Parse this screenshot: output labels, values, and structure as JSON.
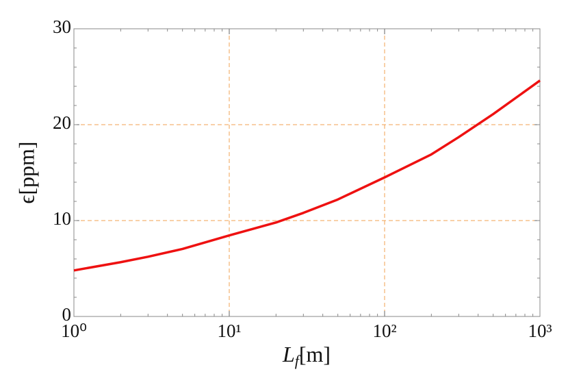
{
  "chart_data": {
    "type": "line",
    "x_label": "Lf[m]",
    "y_label": "ϵ[ppm]",
    "x": [
      1,
      2,
      3,
      5,
      10,
      20,
      30,
      50,
      100,
      200,
      300,
      500,
      1000
    ],
    "series": [
      {
        "name": "ϵ",
        "color": "#ee1111",
        "values": [
          4.8,
          5.66,
          6.23,
          7.04,
          8.45,
          9.8,
          10.8,
          12.2,
          14.5,
          16.9,
          18.7,
          21.1,
          24.6
        ]
      }
    ],
    "xlim": [
      1,
      1000
    ],
    "xscale": "log",
    "xticks": [
      {
        "value": 1,
        "label": "10⁰"
      },
      {
        "value": 10,
        "label": "10¹"
      },
      {
        "value": 100,
        "label": "10²"
      },
      {
        "value": 1000,
        "label": "10³"
      }
    ],
    "ylim": [
      0,
      30
    ],
    "yticks": [
      0,
      10,
      20,
      30
    ],
    "grid": true,
    "grid_color": "#f0a050"
  }
}
